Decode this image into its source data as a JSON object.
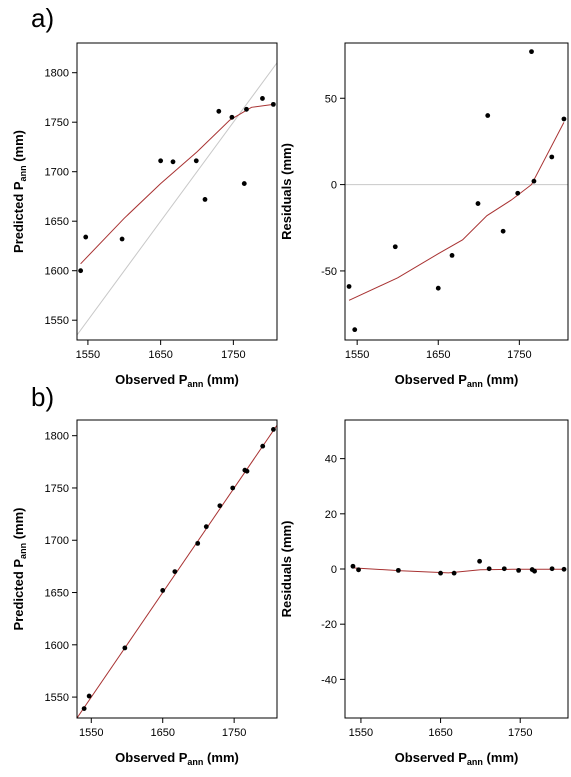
{
  "figure": {
    "panel_labels": [
      "a)",
      "b)"
    ]
  },
  "chart_data": [
    {
      "id": "a-left",
      "type": "scatter",
      "xlabel": {
        "main": "Observed P",
        "sub": "ann",
        "unit": " (mm)"
      },
      "ylabel": {
        "main": "Predicted P",
        "sub": "ann",
        "unit": " (mm)"
      },
      "xlim": [
        1535,
        1810
      ],
      "ylim": [
        1530,
        1830
      ],
      "xticks": [
        1550,
        1650,
        1750
      ],
      "yticks": [
        1550,
        1600,
        1650,
        1700,
        1750,
        1800
      ],
      "reference_line": "identity",
      "reference_color": "#c8c8c8",
      "smooth_color": "#a83232",
      "points": [
        {
          "x": 1540,
          "y": 1600
        },
        {
          "x": 1547,
          "y": 1634
        },
        {
          "x": 1597,
          "y": 1632
        },
        {
          "x": 1650,
          "y": 1711
        },
        {
          "x": 1667,
          "y": 1710
        },
        {
          "x": 1699,
          "y": 1711
        },
        {
          "x": 1711,
          "y": 1672
        },
        {
          "x": 1730,
          "y": 1761
        },
        {
          "x": 1748,
          "y": 1755
        },
        {
          "x": 1765,
          "y": 1688
        },
        {
          "x": 1768,
          "y": 1763
        },
        {
          "x": 1790,
          "y": 1774
        },
        {
          "x": 1805,
          "y": 1768
        }
      ],
      "smooth": [
        {
          "x": 1540,
          "y": 1607
        },
        {
          "x": 1600,
          "y": 1653
        },
        {
          "x": 1650,
          "y": 1688
        },
        {
          "x": 1700,
          "y": 1720
        },
        {
          "x": 1745,
          "y": 1752
        },
        {
          "x": 1775,
          "y": 1765
        },
        {
          "x": 1805,
          "y": 1768
        }
      ]
    },
    {
      "id": "a-right",
      "type": "scatter",
      "xlabel": {
        "main": "Observed P",
        "sub": "ann",
        "unit": " (mm)"
      },
      "ylabel": {
        "main": "Residuals (mm)",
        "sub": "",
        "unit": ""
      },
      "xlim": [
        1535,
        1810
      ],
      "ylim": [
        -90,
        82
      ],
      "xticks": [
        1550,
        1650,
        1750
      ],
      "yticks": [
        -50,
        0,
        50
      ],
      "reference_line": "zero",
      "reference_color": "#c8c8c8",
      "smooth_color": "#a83232",
      "points": [
        {
          "x": 1540,
          "y": -59
        },
        {
          "x": 1547,
          "y": -84
        },
        {
          "x": 1597,
          "y": -36
        },
        {
          "x": 1650,
          "y": -60
        },
        {
          "x": 1667,
          "y": -41
        },
        {
          "x": 1699,
          "y": -11
        },
        {
          "x": 1711,
          "y": 40
        },
        {
          "x": 1730,
          "y": -27
        },
        {
          "x": 1748,
          "y": -5
        },
        {
          "x": 1765,
          "y": 77
        },
        {
          "x": 1768,
          "y": 2
        },
        {
          "x": 1790,
          "y": 16
        },
        {
          "x": 1805,
          "y": 38
        }
      ],
      "smooth": [
        {
          "x": 1540,
          "y": -67
        },
        {
          "x": 1600,
          "y": -54
        },
        {
          "x": 1650,
          "y": -40
        },
        {
          "x": 1680,
          "y": -32
        },
        {
          "x": 1710,
          "y": -18
        },
        {
          "x": 1740,
          "y": -9
        },
        {
          "x": 1765,
          "y": 0
        },
        {
          "x": 1805,
          "y": 36
        }
      ]
    },
    {
      "id": "b-left",
      "type": "scatter",
      "xlabel": {
        "main": "Observed P",
        "sub": "ann",
        "unit": " (mm)"
      },
      "ylabel": {
        "main": "Predicted P",
        "sub": "ann",
        "unit": " (mm)"
      },
      "xlim": [
        1530,
        1810
      ],
      "ylim": [
        1530,
        1815
      ],
      "xticks": [
        1550,
        1650,
        1750
      ],
      "yticks": [
        1550,
        1600,
        1650,
        1700,
        1750,
        1800
      ],
      "reference_line": "identity",
      "reference_color": "#a83232",
      "smooth_color": "#a83232",
      "points": [
        {
          "x": 1540,
          "y": 1539
        },
        {
          "x": 1547,
          "y": 1551
        },
        {
          "x": 1597,
          "y": 1597
        },
        {
          "x": 1650,
          "y": 1652
        },
        {
          "x": 1667,
          "y": 1670
        },
        {
          "x": 1699,
          "y": 1697
        },
        {
          "x": 1711,
          "y": 1713
        },
        {
          "x": 1730,
          "y": 1733
        },
        {
          "x": 1748,
          "y": 1750
        },
        {
          "x": 1765,
          "y": 1767
        },
        {
          "x": 1768,
          "y": 1766
        },
        {
          "x": 1790,
          "y": 1790
        },
        {
          "x": 1805,
          "y": 1806
        }
      ],
      "smooth": []
    },
    {
      "id": "b-right",
      "type": "scatter",
      "xlabel": {
        "main": "Observed P",
        "sub": "ann",
        "unit": " (mm)"
      },
      "ylabel": {
        "main": "Residuals (mm)",
        "sub": "",
        "unit": ""
      },
      "xlim": [
        1530,
        1810
      ],
      "ylim": [
        -54,
        54
      ],
      "xticks": [
        1550,
        1650,
        1750
      ],
      "yticks": [
        -40,
        -20,
        0,
        20,
        40
      ],
      "reference_line": "none",
      "reference_color": "#c8c8c8",
      "smooth_color": "#a83232",
      "points": [
        {
          "x": 1540,
          "y": 1
        },
        {
          "x": 1547,
          "y": -0.3
        },
        {
          "x": 1597,
          "y": -0.5
        },
        {
          "x": 1650,
          "y": -1.5
        },
        {
          "x": 1667,
          "y": -1.5
        },
        {
          "x": 1699,
          "y": 2.8
        },
        {
          "x": 1711,
          "y": 0.1
        },
        {
          "x": 1730,
          "y": 0.1
        },
        {
          "x": 1748,
          "y": -0.5
        },
        {
          "x": 1765,
          "y": -0.2
        },
        {
          "x": 1768,
          "y": -0.8
        },
        {
          "x": 1790,
          "y": 0.1
        },
        {
          "x": 1805,
          "y": -0.1
        }
      ],
      "smooth": [
        {
          "x": 1540,
          "y": 0.4
        },
        {
          "x": 1600,
          "y": -0.6
        },
        {
          "x": 1660,
          "y": -1.4
        },
        {
          "x": 1700,
          "y": -0.3
        },
        {
          "x": 1740,
          "y": -0.1
        },
        {
          "x": 1805,
          "y": -0.1
        }
      ]
    }
  ]
}
